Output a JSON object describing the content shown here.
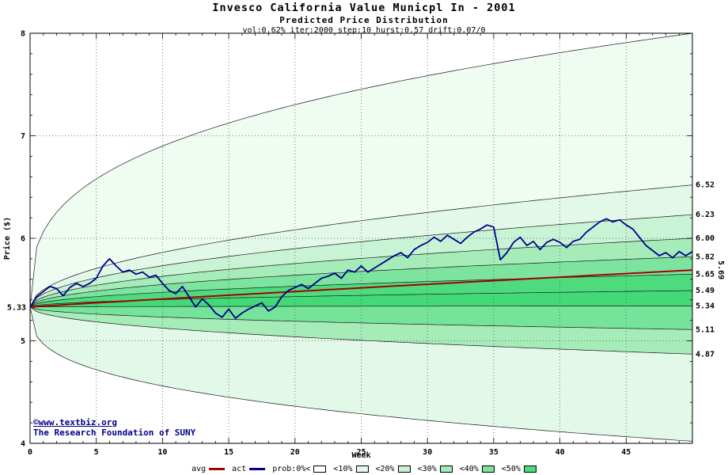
{
  "title": "Invesco California Value Municpl In - 2001",
  "subtitle": "Predicted Price Distribution",
  "params": "vol:0.62% iter:2000 step:10 hurst:0.57 drift:0.07/0",
  "watermark": {
    "site": "©www.textbiz.org",
    "org": "The Research Foundation of SUNY",
    "color": "#00008b"
  },
  "chart_data": {
    "type": "area",
    "title": "Invesco California Value Municpl In - 2001",
    "xlabel": "Week",
    "ylabel": "Price ($)",
    "xlim": [
      0,
      50
    ],
    "ylim": [
      4,
      8
    ],
    "x_major_ticks": [
      0,
      5,
      10,
      15,
      20,
      25,
      30,
      35,
      40,
      45
    ],
    "y_major_ticks": [
      4,
      5,
      6,
      7,
      8
    ],
    "x_minor_step": 1,
    "y_minor_step": 0.2,
    "grid_x": [
      5,
      10,
      15,
      20,
      25,
      30,
      35,
      40,
      45
    ],
    "grid_y": [
      5,
      6,
      7
    ],
    "start_label": "5.33",
    "bands": {
      "start": 5.33,
      "exponent_inner": 0.5,
      "exponent_outer": 0.33,
      "boundaries": [
        {
          "end": 8.0,
          "outer": true,
          "label": ""
        },
        {
          "end": 6.52,
          "outer": false,
          "label": "6.52"
        },
        {
          "end": 6.23,
          "outer": false,
          "label": "6.23"
        },
        {
          "end": 6.0,
          "outer": false,
          "label": "6.00"
        },
        {
          "end": 5.82,
          "outer": false,
          "label": "5.82"
        },
        {
          "end": 5.65,
          "outer": false,
          "label": "5.65"
        },
        {
          "end": 5.49,
          "outer": false,
          "label": "5.49"
        },
        {
          "end": 5.34,
          "outer": false,
          "label": "5.34"
        },
        {
          "end": 5.11,
          "outer": false,
          "label": "5.11"
        },
        {
          "end": 4.87,
          "outer": false,
          "label": "4.87"
        },
        {
          "end": 4.02,
          "outer": true,
          "label": ""
        }
      ],
      "fills": [
        "#eefcf2",
        "#e2f8e9",
        "#c8f3d4",
        "#a6ecb9",
        "#7ce49f",
        "#4ddb7e",
        "#42d976",
        "#76e39b",
        "#a6ecb9",
        "#e2f8e9"
      ]
    },
    "avg": {
      "label": "avg",
      "end": 5.69,
      "end_label": "5.69",
      "end_label_color": "#b00000",
      "exponent": 0.95,
      "color": "#a40000"
    },
    "actual": {
      "label": "act",
      "color": "#00008b",
      "points": [
        [
          0,
          5.33
        ],
        [
          0.5,
          5.43
        ],
        [
          1,
          5.48
        ],
        [
          1.5,
          5.53
        ],
        [
          2,
          5.51
        ],
        [
          2.5,
          5.44
        ],
        [
          3,
          5.52
        ],
        [
          3.5,
          5.56
        ],
        [
          4,
          5.53
        ],
        [
          4.5,
          5.56
        ],
        [
          5,
          5.61
        ],
        [
          5.5,
          5.73
        ],
        [
          6,
          5.8
        ],
        [
          6.5,
          5.73
        ],
        [
          7,
          5.67
        ],
        [
          7.5,
          5.69
        ],
        [
          8,
          5.65
        ],
        [
          8.5,
          5.67
        ],
        [
          9,
          5.62
        ],
        [
          9.5,
          5.64
        ],
        [
          10,
          5.56
        ],
        [
          10.5,
          5.49
        ],
        [
          11,
          5.46
        ],
        [
          11.5,
          5.53
        ],
        [
          12,
          5.43
        ],
        [
          12.5,
          5.33
        ],
        [
          13,
          5.41
        ],
        [
          13.5,
          5.35
        ],
        [
          14,
          5.27
        ],
        [
          14.5,
          5.23
        ],
        [
          15,
          5.31
        ],
        [
          15.5,
          5.22
        ],
        [
          16,
          5.27
        ],
        [
          16.5,
          5.31
        ],
        [
          17,
          5.34
        ],
        [
          17.5,
          5.37
        ],
        [
          18,
          5.29
        ],
        [
          18.5,
          5.33
        ],
        [
          19,
          5.43
        ],
        [
          19.5,
          5.49
        ],
        [
          20,
          5.52
        ],
        [
          20.5,
          5.55
        ],
        [
          21,
          5.51
        ],
        [
          21.5,
          5.56
        ],
        [
          22,
          5.61
        ],
        [
          22.5,
          5.63
        ],
        [
          23,
          5.66
        ],
        [
          23.5,
          5.61
        ],
        [
          24,
          5.69
        ],
        [
          24.5,
          5.67
        ],
        [
          25,
          5.73
        ],
        [
          25.5,
          5.67
        ],
        [
          26,
          5.71
        ],
        [
          26.5,
          5.75
        ],
        [
          27,
          5.79
        ],
        [
          27.5,
          5.83
        ],
        [
          28,
          5.86
        ],
        [
          28.5,
          5.81
        ],
        [
          29,
          5.89
        ],
        [
          29.5,
          5.93
        ],
        [
          30,
          5.96
        ],
        [
          30.5,
          6.01
        ],
        [
          31,
          5.97
        ],
        [
          31.5,
          6.03
        ],
        [
          32,
          5.99
        ],
        [
          32.5,
          5.95
        ],
        [
          33,
          6.01
        ],
        [
          33.5,
          6.06
        ],
        [
          34,
          6.09
        ],
        [
          34.5,
          6.13
        ],
        [
          35,
          6.11
        ],
        [
          35.5,
          5.79
        ],
        [
          36,
          5.86
        ],
        [
          36.5,
          5.96
        ],
        [
          37,
          6.01
        ],
        [
          37.5,
          5.93
        ],
        [
          38,
          5.97
        ],
        [
          38.5,
          5.89
        ],
        [
          39,
          5.96
        ],
        [
          39.5,
          5.99
        ],
        [
          40,
          5.96
        ],
        [
          40.5,
          5.91
        ],
        [
          41,
          5.97
        ],
        [
          41.5,
          5.99
        ],
        [
          42,
          6.06
        ],
        [
          42.5,
          6.11
        ],
        [
          43,
          6.16
        ],
        [
          43.5,
          6.19
        ],
        [
          44,
          6.16
        ],
        [
          44.5,
          6.18
        ],
        [
          45,
          6.13
        ],
        [
          45.5,
          6.09
        ],
        [
          46,
          6.01
        ],
        [
          46.5,
          5.93
        ],
        [
          47,
          5.88
        ],
        [
          47.5,
          5.83
        ],
        [
          48,
          5.86
        ],
        [
          48.5,
          5.81
        ],
        [
          49,
          5.87
        ],
        [
          49.5,
          5.83
        ],
        [
          50,
          5.87
        ]
      ]
    }
  },
  "legend": {
    "items": [
      {
        "label": "avg",
        "swatch": "line",
        "color": "#a40000"
      },
      {
        "label": "act",
        "swatch": "line",
        "color": "#00008b"
      },
      {
        "label": "prob:0%<",
        "swatch": "box",
        "color": "#ffffff"
      },
      {
        "label": "<10%",
        "swatch": "box",
        "color": "#e2f8e9"
      },
      {
        "label": "<20%",
        "swatch": "box",
        "color": "#c8f3d4"
      },
      {
        "label": "<30%",
        "swatch": "box",
        "color": "#a6ecb9"
      },
      {
        "label": "<40%",
        "swatch": "box",
        "color": "#7ce49f"
      },
      {
        "label": "<50%",
        "swatch": "box",
        "color": "#4ddb7e"
      }
    ]
  }
}
